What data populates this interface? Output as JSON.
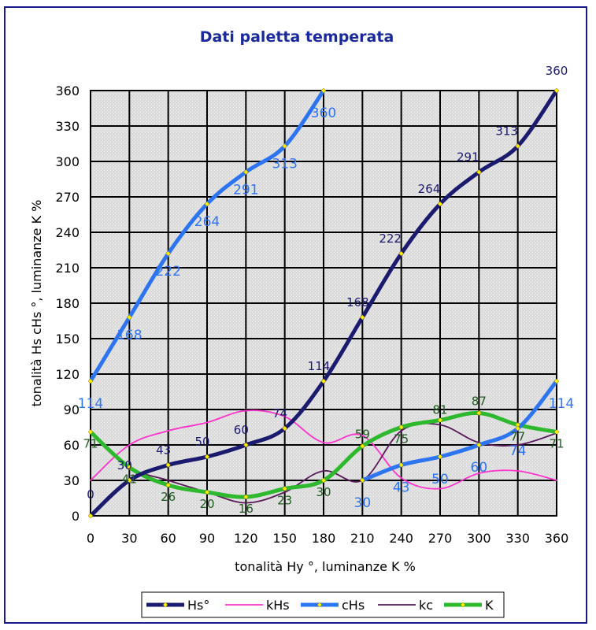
{
  "chart_data": {
    "type": "line",
    "title": "Dati paletta temperata",
    "xlabel": "tonalità Hy °, luminanze K %",
    "ylabel": "tonalità Hs cHs °, luminanze K %",
    "xlim": [
      0,
      360
    ],
    "ylim": [
      0,
      360
    ],
    "x_ticks": [
      0,
      30,
      60,
      90,
      120,
      150,
      180,
      210,
      240,
      270,
      300,
      330,
      360
    ],
    "y_ticks": [
      0,
      30,
      60,
      90,
      120,
      150,
      180,
      210,
      240,
      270,
      300,
      330,
      360
    ],
    "grid": true,
    "legend_position": "bottom",
    "series": [
      {
        "name": "Hs°",
        "color": "#1a1a6e",
        "marker": "yellow-diamond",
        "labels_shown": true,
        "x": [
          0,
          30,
          60,
          90,
          120,
          150,
          180,
          210,
          240,
          270,
          300,
          330,
          360
        ],
        "values": [
          0,
          30,
          43,
          50,
          60,
          74,
          114,
          168,
          222,
          264,
          291,
          313,
          360
        ]
      },
      {
        "name": "kHs",
        "color": "#ff33cc",
        "marker": "none",
        "labels_shown": false,
        "x": [
          0,
          30,
          60,
          90,
          120,
          150,
          180,
          210,
          240,
          270,
          300,
          330,
          360
        ],
        "values": [
          30,
          60,
          72,
          79,
          89,
          84,
          62,
          68,
          32,
          23,
          36,
          38,
          30
        ]
      },
      {
        "name": "cHs",
        "color": "#2d74f0",
        "marker": "yellow-diamond",
        "labels_shown": true,
        "segments": [
          {
            "x": [
              0,
              30,
              60,
              90,
              120,
              150,
              180
            ],
            "values": [
              114,
              168,
              222,
              264,
              291,
              313,
              360
            ]
          },
          {
            "x": [
              210,
              240,
              270,
              300,
              330,
              360
            ],
            "values": [
              30,
              43,
              50,
              60,
              74,
              114
            ]
          }
        ]
      },
      {
        "name": "kc",
        "color": "#5a1a5a",
        "marker": "none",
        "labels_shown": false,
        "x": [
          0,
          30,
          60,
          90,
          120,
          150,
          180,
          210,
          240,
          270,
          300,
          330,
          360
        ],
        "values": [
          70,
          41,
          30,
          20,
          11,
          20,
          38,
          30,
          72,
          77,
          62,
          60,
          70
        ]
      },
      {
        "name": "K",
        "color": "#2eb82e",
        "marker": "yellow-diamond",
        "labels_shown": true,
        "x": [
          0,
          30,
          60,
          90,
          120,
          150,
          180,
          210,
          240,
          270,
          300,
          330,
          360
        ],
        "values": [
          71,
          41,
          26,
          20,
          16,
          23,
          30,
          59,
          75,
          81,
          87,
          77,
          71
        ]
      }
    ]
  }
}
